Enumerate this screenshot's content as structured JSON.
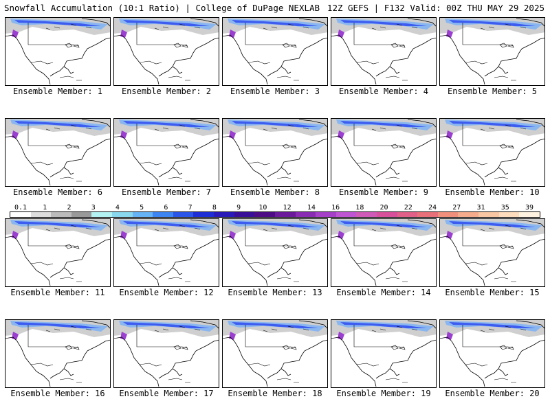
{
  "header": {
    "title": "Snowfall Accumulation (10:1 Ratio) | College of DuPage NEXLAB",
    "run": "12Z GEFS | F132 Valid: 00Z THU MAY 29 2025"
  },
  "panels": [
    {
      "label": "Ensemble Member: 1"
    },
    {
      "label": "Ensemble Member: 2"
    },
    {
      "label": "Ensemble Member: 3"
    },
    {
      "label": "Ensemble Member: 4"
    },
    {
      "label": "Ensemble Member: 5"
    },
    {
      "label": "Ensemble Member: 6"
    },
    {
      "label": "Ensemble Member: 7"
    },
    {
      "label": "Ensemble Member: 8"
    },
    {
      "label": "Ensemble Member: 9"
    },
    {
      "label": "Ensemble Member: 10"
    },
    {
      "label": "Ensemble Member: 11"
    },
    {
      "label": "Ensemble Member: 12"
    },
    {
      "label": "Ensemble Member: 13"
    },
    {
      "label": "Ensemble Member: 14"
    },
    {
      "label": "Ensemble Member: 15"
    },
    {
      "label": "Ensemble Member: 16"
    },
    {
      "label": "Ensemble Member: 17"
    },
    {
      "label": "Ensemble Member: 18"
    },
    {
      "label": "Ensemble Member: 19"
    },
    {
      "label": "Ensemble Member: 20"
    }
  ],
  "colorbar": {
    "labels": [
      "0.1",
      "1",
      "2",
      "3",
      "4",
      "5",
      "6",
      "7",
      "8",
      "9",
      "10",
      "12",
      "14",
      "16",
      "18",
      "20",
      "22",
      "24",
      "27",
      "31",
      "35",
      "39"
    ],
    "colors": [
      "#ffffff",
      "#dddddd",
      "#bbbbbb",
      "#999999",
      "#b3f2f2",
      "#8ad8ee",
      "#66b3f5",
      "#3d85f2",
      "#2a55e8",
      "#1e2ed6",
      "#2a1ab8",
      "#3a0f98",
      "#4d0c86",
      "#6a1a9a",
      "#8a2bb4",
      "#a640c8",
      "#c055d4",
      "#d05ab8",
      "#d8509c",
      "#e0608a",
      "#e8707a",
      "#f0907c",
      "#f4ac8c",
      "#f8c6a2",
      "#fcdcbc",
      "#fff2e0"
    ]
  }
}
